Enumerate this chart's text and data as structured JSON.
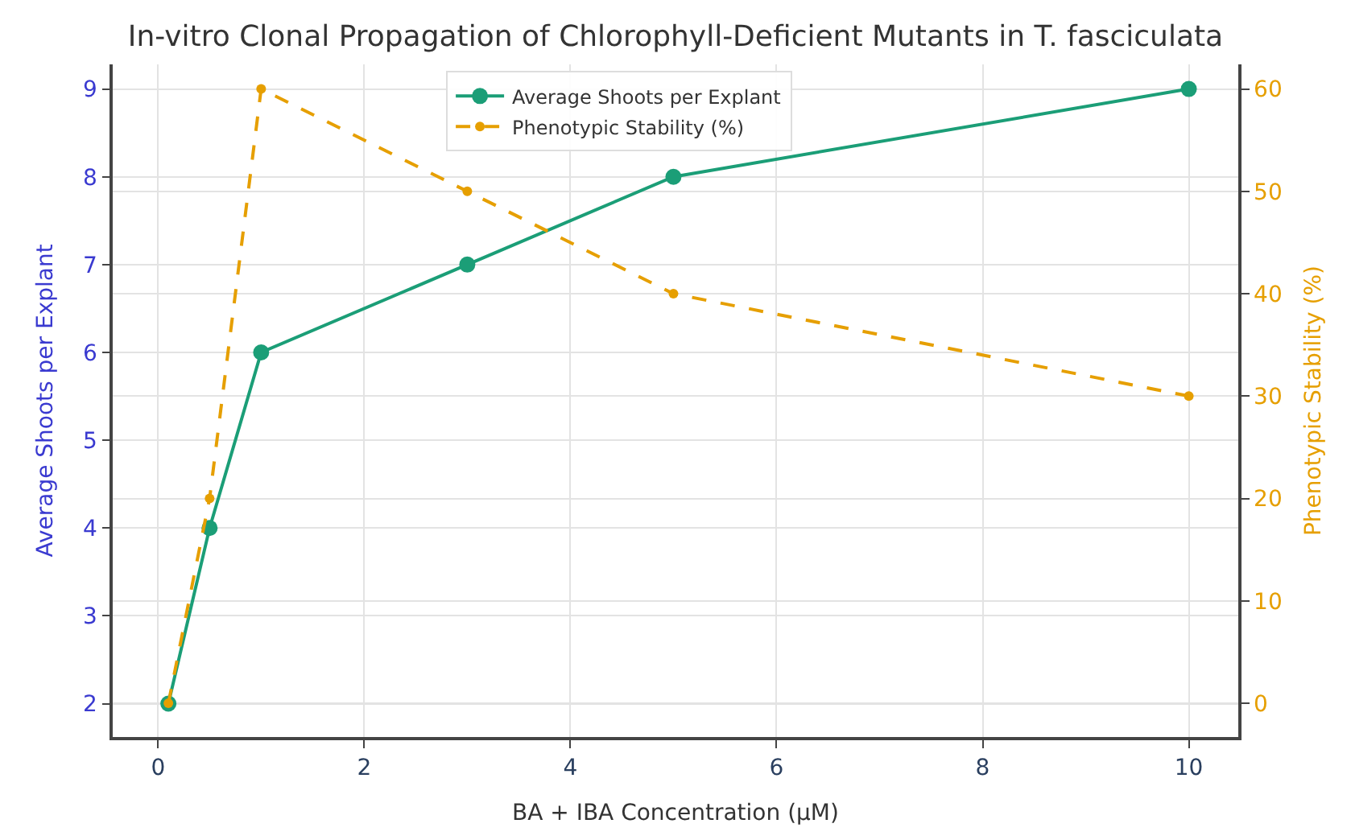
{
  "chart_data": {
    "type": "line",
    "title": "In-vitro Clonal Propagation of Chlorophyll-Deficient Mutants in T. fasciculata",
    "xlabel": "BA + IBA Concentration (µM)",
    "ylabel": "Average Shoots per Explant",
    "y2label": "Phenotypic Stability (%)",
    "x": [
      0.1,
      0.5,
      1,
      3,
      5,
      10
    ],
    "series": [
      {
        "name": "Average Shoots per Explant",
        "color": "#1b9e77",
        "values": [
          2,
          4,
          6,
          7,
          8,
          9
        ],
        "line_style": "solid"
      },
      {
        "name": "Phenotypic Stability (%)",
        "color": "#e69f00",
        "values": [
          0,
          20,
          60,
          50,
          40,
          30
        ],
        "axis": "y2",
        "line_style": "dashed"
      }
    ],
    "xlim": [
      -0.44,
      10.48
    ],
    "xticks": [
      0,
      2,
      4,
      6,
      8,
      10
    ],
    "ylim": [
      1.62,
      9.28
    ],
    "yticks": [
      2,
      3,
      4,
      5,
      6,
      7,
      8,
      9
    ],
    "y2lim": [
      -3.3,
      62.4
    ],
    "y2ticks": [
      0,
      10,
      20,
      30,
      40,
      50,
      60
    ],
    "grid": true,
    "legend": "top",
    "marker": "circle"
  }
}
